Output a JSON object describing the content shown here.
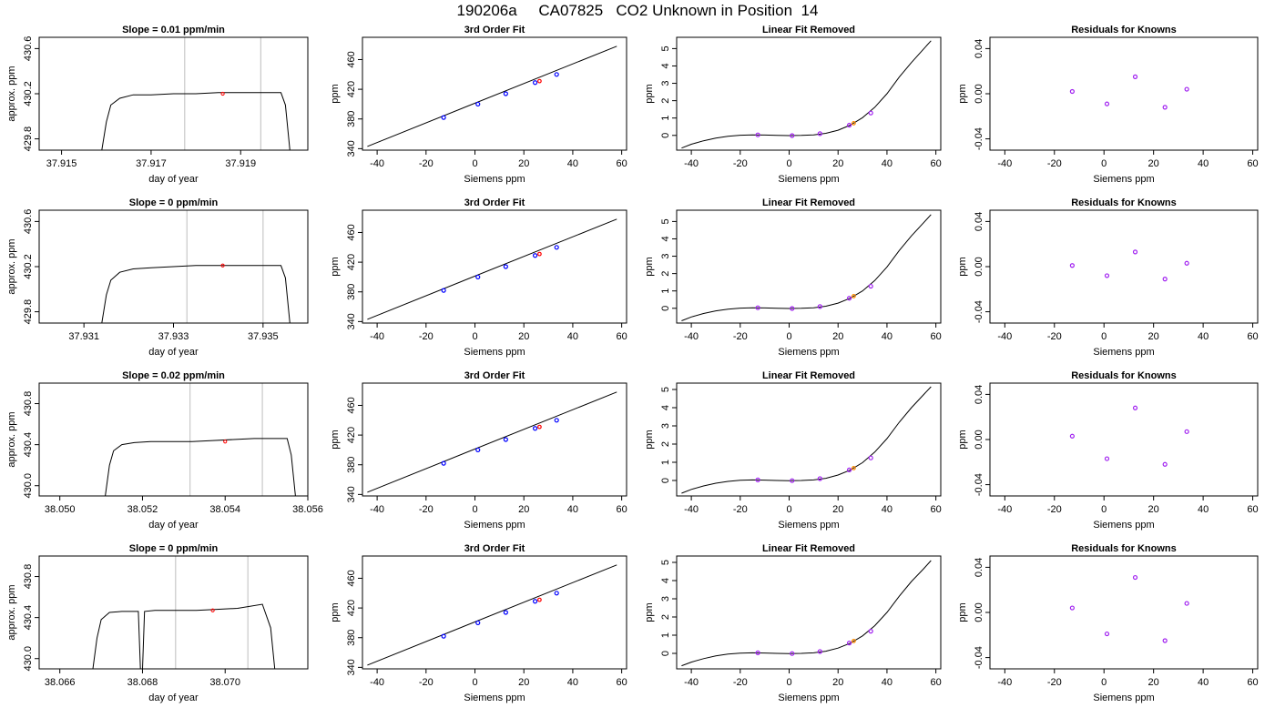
{
  "page_title": "190206a     CA07825   CO2 Unknown in Position  14",
  "colors": {
    "known_point": "#0000ff",
    "unknown_point": "#ff0000",
    "residual_point": "#a020f0",
    "removed_unknown": "#ff8c00",
    "window_line": "#c8c8c8",
    "trace": "#000000"
  },
  "chart_data": [
    {
      "type": "line",
      "row": 1,
      "panel": "trace",
      "title": "Slope =  0.01  ppm/min",
      "xlabel": "day of year",
      "ylabel": "approx. ppm",
      "xlim": [
        37.9145,
        37.9205
      ],
      "ylim": [
        429.7,
        430.7
      ],
      "xticks": [
        37.915,
        37.917,
        37.919
      ],
      "xtick_labels": [
        "37.915",
        "37.917",
        "37.919"
      ],
      "yticks": [
        429.8,
        430.2,
        430.6
      ],
      "ytick_labels": [
        "429.8",
        "430.2",
        "430.6"
      ],
      "trace_x": [
        37.9159,
        37.916,
        37.9161,
        37.9163,
        37.9166,
        37.917,
        37.9175,
        37.918,
        37.9185,
        37.919,
        37.9195,
        37.9199,
        37.92,
        37.9201
      ],
      "trace_y": [
        429.7,
        429.95,
        430.1,
        430.16,
        430.19,
        430.19,
        430.2,
        430.2,
        430.21,
        430.21,
        430.21,
        430.21,
        430.1,
        429.7
      ],
      "window_x": [
        37.91775,
        37.91945
      ],
      "mean_x": 37.9186,
      "mean_y": 430.2
    },
    {
      "type": "line",
      "row": 1,
      "panel": "fit",
      "title": "3rd Order Fit",
      "xlabel": "Siemens ppm",
      "ylabel": "ppm",
      "xlim": [
        -46,
        62
      ],
      "ylim": [
        338,
        490
      ],
      "xticks": [
        -40,
        -20,
        0,
        20,
        40,
        60
      ],
      "xtick_labels": [
        "-40",
        "-20",
        "0",
        "20",
        "40",
        "60"
      ],
      "yticks": [
        340,
        380,
        420,
        460
      ],
      "ytick_labels": [
        "340",
        "380",
        "420",
        "460"
      ],
      "line_x": [
        -44,
        58
      ],
      "line_y": [
        343,
        478
      ],
      "known_x": [
        -12.8,
        1.2,
        12.6,
        24.6,
        33.4
      ],
      "known_y": [
        382,
        400,
        414,
        429,
        440
      ],
      "unknown_x": [
        26.4
      ],
      "unknown_y": [
        431
      ]
    },
    {
      "type": "line",
      "row": 1,
      "panel": "linfit",
      "title": "Linear Fit Removed",
      "xlabel": "Siemens ppm",
      "ylabel": "ppm",
      "xlim": [
        -46,
        62
      ],
      "ylim": [
        -0.85,
        5.65
      ],
      "xticks": [
        -40,
        -20,
        0,
        20,
        40,
        60
      ],
      "xtick_labels": [
        "-40",
        "-20",
        "0",
        "20",
        "40",
        "60"
      ],
      "yticks": [
        0,
        1,
        2,
        3,
        4,
        5
      ],
      "ytick_labels": [
        "0",
        "1",
        "2",
        "3",
        "4",
        "5"
      ],
      "curve_x": [
        -44,
        -40,
        -35,
        -30,
        -25,
        -20,
        -15,
        -10,
        -5,
        0,
        5,
        10,
        15,
        20,
        25,
        30,
        35,
        40,
        45,
        50,
        55,
        58
      ],
      "curve_y": [
        -0.73,
        -0.51,
        -0.31,
        -0.16,
        -0.05,
        0.01,
        0.03,
        0.02,
        0.0,
        -0.01,
        0.0,
        0.03,
        0.12,
        0.3,
        0.59,
        1.02,
        1.62,
        2.4,
        3.36,
        4.2,
        4.98,
        5.45
      ],
      "known_x": [
        -12.8,
        1.2,
        12.6,
        24.6,
        33.4
      ],
      "known_y": [
        0.03,
        -0.01,
        0.1,
        0.59,
        1.29
      ],
      "unknown_x": [
        26.4
      ],
      "unknown_y": [
        0.7
      ]
    },
    {
      "type": "scatter",
      "row": 1,
      "panel": "resid",
      "title": "Residuals for Knowns",
      "xlabel": "Siemens ppm",
      "ylabel": "ppm",
      "xlim": [
        -46,
        62
      ],
      "ylim": [
        -0.05,
        0.05
      ],
      "xticks": [
        -40,
        -20,
        0,
        20,
        40,
        60
      ],
      "xtick_labels": [
        "-40",
        "-20",
        "0",
        "20",
        "40",
        "60"
      ],
      "yticks": [
        -0.04,
        0.0,
        0.04
      ],
      "ytick_labels": [
        "-0.04",
        "0.00",
        "0.04"
      ],
      "resid_x": [
        -12.8,
        1.2,
        12.6,
        24.6,
        33.4
      ],
      "resid_y": [
        0.002,
        -0.009,
        0.015,
        -0.012,
        0.004
      ]
    },
    {
      "type": "line",
      "row": 2,
      "panel": "trace",
      "title": "Slope =  0  ppm/min",
      "xlabel": "day of year",
      "ylabel": "approx. ppm",
      "xlim": [
        37.93,
        37.936
      ],
      "ylim": [
        429.7,
        430.7
      ],
      "xticks": [
        37.931,
        37.933,
        37.935
      ],
      "xtick_labels": [
        "37.931",
        "37.933",
        "37.935"
      ],
      "yticks": [
        429.8,
        430.2,
        430.6
      ],
      "ytick_labels": [
        "429.8",
        "430.2",
        "430.6"
      ],
      "trace_x": [
        37.9314,
        37.9315,
        37.9316,
        37.9318,
        37.9321,
        37.9325,
        37.933,
        37.9335,
        37.934,
        37.9345,
        37.935,
        37.9354,
        37.9355,
        37.9356
      ],
      "trace_y": [
        429.7,
        429.95,
        430.08,
        430.15,
        430.18,
        430.19,
        430.2,
        430.21,
        430.21,
        430.21,
        430.21,
        430.21,
        430.1,
        429.7
      ],
      "window_x": [
        37.9333,
        37.935
      ],
      "mean_x": 37.9341,
      "mean_y": 430.21
    },
    {
      "type": "line",
      "row": 2,
      "panel": "fit",
      "title": "3rd Order Fit",
      "xlabel": "Siemens ppm",
      "ylabel": "ppm",
      "xlim": [
        -46,
        62
      ],
      "ylim": [
        338,
        490
      ],
      "xticks": [
        -40,
        -20,
        0,
        20,
        40,
        60
      ],
      "xtick_labels": [
        "-40",
        "-20",
        "0",
        "20",
        "40",
        "60"
      ],
      "yticks": [
        340,
        380,
        420,
        460
      ],
      "ytick_labels": [
        "340",
        "380",
        "420",
        "460"
      ],
      "line_x": [
        -44,
        58
      ],
      "line_y": [
        343,
        478
      ],
      "known_x": [
        -12.8,
        1.2,
        12.6,
        24.6,
        33.4
      ],
      "known_y": [
        382,
        400,
        414,
        429,
        440
      ],
      "unknown_x": [
        26.4
      ],
      "unknown_y": [
        431
      ]
    },
    {
      "type": "line",
      "row": 2,
      "panel": "linfit",
      "title": "Linear Fit Removed",
      "xlabel": "Siemens ppm",
      "ylabel": "ppm",
      "xlim": [
        -46,
        62
      ],
      "ylim": [
        -0.85,
        5.65
      ],
      "xticks": [
        -40,
        -20,
        0,
        20,
        40,
        60
      ],
      "xtick_labels": [
        "-40",
        "-20",
        "0",
        "20",
        "40",
        "60"
      ],
      "yticks": [
        0,
        1,
        2,
        3,
        4,
        5
      ],
      "ytick_labels": [
        "0",
        "1",
        "2",
        "3",
        "4",
        "5"
      ],
      "curve_x": [
        -44,
        -40,
        -35,
        -30,
        -25,
        -20,
        -15,
        -10,
        -5,
        0,
        5,
        10,
        15,
        20,
        25,
        30,
        35,
        40,
        45,
        50,
        55,
        58
      ],
      "curve_y": [
        -0.72,
        -0.5,
        -0.3,
        -0.15,
        -0.05,
        0.01,
        0.03,
        0.02,
        0.0,
        -0.01,
        0.0,
        0.03,
        0.12,
        0.3,
        0.58,
        1.0,
        1.6,
        2.38,
        3.33,
        4.17,
        4.93,
        5.4
      ],
      "known_x": [
        -12.8,
        1.2,
        12.6,
        24.6,
        33.4
      ],
      "known_y": [
        0.03,
        -0.01,
        0.1,
        0.58,
        1.27
      ],
      "unknown_x": [
        26.4
      ],
      "unknown_y": [
        0.7
      ]
    },
    {
      "type": "scatter",
      "row": 2,
      "panel": "resid",
      "title": "Residuals for Knowns",
      "xlabel": "Siemens ppm",
      "ylabel": "ppm",
      "xlim": [
        -46,
        62
      ],
      "ylim": [
        -0.05,
        0.05
      ],
      "xticks": [
        -40,
        -20,
        0,
        20,
        40,
        60
      ],
      "xtick_labels": [
        "-40",
        "-20",
        "0",
        "20",
        "40",
        "60"
      ],
      "yticks": [
        -0.04,
        0.0,
        0.04
      ],
      "ytick_labels": [
        "-0.04",
        "0.00",
        "0.04"
      ],
      "resid_x": [
        -12.8,
        1.2,
        12.6,
        24.6,
        33.4
      ],
      "resid_y": [
        0.001,
        -0.008,
        0.013,
        -0.011,
        0.003
      ]
    },
    {
      "type": "line",
      "row": 3,
      "panel": "trace",
      "title": "Slope =  0.02  ppm/min",
      "xlabel": "day of year",
      "ylabel": "approx. ppm",
      "xlim": [
        38.0495,
        38.056
      ],
      "ylim": [
        429.9,
        431.0
      ],
      "xticks": [
        38.05,
        38.052,
        38.054,
        38.056
      ],
      "xtick_labels": [
        "38.050",
        "38.052",
        "38.054",
        "38.056"
      ],
      "yticks": [
        430.0,
        430.4,
        430.8
      ],
      "ytick_labels": [
        "430.0",
        "430.4",
        "430.8"
      ],
      "trace_x": [
        38.0511,
        38.0512,
        38.0513,
        38.0515,
        38.0518,
        38.0522,
        38.0527,
        38.0532,
        38.0537,
        38.0542,
        38.0547,
        38.0552,
        38.0555,
        38.0556,
        38.0557
      ],
      "trace_y": [
        429.9,
        430.2,
        430.34,
        430.4,
        430.42,
        430.43,
        430.43,
        430.43,
        430.44,
        430.45,
        430.46,
        430.46,
        430.46,
        430.3,
        429.9
      ],
      "window_x": [
        38.05315,
        38.0549
      ],
      "mean_x": 38.054,
      "mean_y": 430.43
    },
    {
      "type": "line",
      "row": 3,
      "panel": "fit",
      "title": "3rd Order Fit",
      "xlabel": "Siemens ppm",
      "ylabel": "ppm",
      "xlim": [
        -46,
        62
      ],
      "ylim": [
        338,
        490
      ],
      "xticks": [
        -40,
        -20,
        0,
        20,
        40,
        60
      ],
      "xtick_labels": [
        "-40",
        "-20",
        "0",
        "20",
        "40",
        "60"
      ],
      "yticks": [
        340,
        380,
        420,
        460
      ],
      "ytick_labels": [
        "340",
        "380",
        "420",
        "460"
      ],
      "line_x": [
        -44,
        58
      ],
      "line_y": [
        343,
        478
      ],
      "known_x": [
        -12.8,
        1.2,
        12.6,
        24.6,
        33.4
      ],
      "known_y": [
        382,
        400,
        414,
        429,
        440
      ],
      "unknown_x": [
        26.4
      ],
      "unknown_y": [
        431
      ]
    },
    {
      "type": "line",
      "row": 3,
      "panel": "linfit",
      "title": "Linear Fit Removed",
      "xlabel": "Siemens ppm",
      "ylabel": "ppm",
      "xlim": [
        -46,
        62
      ],
      "ylim": [
        -0.85,
        5.35
      ],
      "xticks": [
        -40,
        -20,
        0,
        20,
        40,
        60
      ],
      "xtick_labels": [
        "-40",
        "-20",
        "0",
        "20",
        "40",
        "60"
      ],
      "yticks": [
        0,
        1,
        2,
        3,
        4,
        5
      ],
      "ytick_labels": [
        "0",
        "1",
        "2",
        "3",
        "4",
        "5"
      ],
      "curve_x": [
        -44,
        -40,
        -35,
        -30,
        -25,
        -20,
        -15,
        -10,
        -5,
        0,
        5,
        10,
        15,
        20,
        25,
        30,
        35,
        40,
        45,
        50,
        55,
        58
      ],
      "curve_y": [
        -0.7,
        -0.49,
        -0.3,
        -0.15,
        -0.05,
        0.01,
        0.03,
        0.02,
        0.0,
        -0.01,
        0.0,
        0.03,
        0.12,
        0.3,
        0.57,
        0.98,
        1.56,
        2.3,
        3.2,
        4.0,
        4.72,
        5.15
      ],
      "known_x": [
        -12.8,
        1.2,
        12.6,
        24.6,
        33.4
      ],
      "known_y": [
        0.03,
        -0.01,
        0.1,
        0.58,
        1.24
      ],
      "unknown_x": [
        26.4
      ],
      "unknown_y": [
        0.68
      ]
    },
    {
      "type": "scatter",
      "row": 3,
      "panel": "resid",
      "title": "Residuals for Knowns",
      "xlabel": "Siemens ppm",
      "ylabel": "ppm",
      "xlim": [
        -46,
        62
      ],
      "ylim": [
        -0.05,
        0.05
      ],
      "xticks": [
        -40,
        -20,
        0,
        20,
        40,
        60
      ],
      "xtick_labels": [
        "-40",
        "-20",
        "0",
        "20",
        "40",
        "60"
      ],
      "yticks": [
        -0.04,
        0.0,
        0.04
      ],
      "ytick_labels": [
        "-0.04",
        "0.00",
        "0.04"
      ],
      "resid_x": [
        -12.8,
        1.2,
        12.6,
        24.6,
        33.4
      ],
      "resid_y": [
        0.003,
        -0.017,
        0.028,
        -0.022,
        0.007
      ]
    },
    {
      "type": "line",
      "row": 4,
      "panel": "trace",
      "title": "Slope =  0  ppm/min",
      "xlabel": "day of year",
      "ylabel": "approx. ppm",
      "xlim": [
        38.0655,
        38.072
      ],
      "ylim": [
        429.9,
        431.0
      ],
      "xticks": [
        38.066,
        38.068,
        38.07
      ],
      "xtick_labels": [
        "38.066",
        "38.068",
        "38.070"
      ],
      "yticks": [
        430.0,
        430.4,
        430.8
      ],
      "ytick_labels": [
        "430.0",
        "430.4",
        "430.8"
      ],
      "trace_x": [
        38.0668,
        38.0669,
        38.067,
        38.0672,
        38.0675,
        38.0679,
        38.06795,
        38.068,
        38.06805,
        38.0683,
        38.0688,
        38.0693,
        38.0698,
        38.0703,
        38.0709,
        38.0711,
        38.0712
      ],
      "trace_y": [
        429.9,
        430.2,
        430.38,
        430.45,
        430.46,
        430.46,
        429.9,
        429.9,
        430.46,
        430.47,
        430.47,
        430.47,
        430.48,
        430.49,
        430.53,
        430.3,
        429.9
      ],
      "window_x": [
        38.0688,
        38.07055
      ],
      "mean_x": 38.0697,
      "mean_y": 430.47
    },
    {
      "type": "line",
      "row": 4,
      "panel": "fit",
      "title": "3rd Order Fit",
      "xlabel": "Siemens ppm",
      "ylabel": "ppm",
      "xlim": [
        -46,
        62
      ],
      "ylim": [
        338,
        490
      ],
      "xticks": [
        -40,
        -20,
        0,
        20,
        40,
        60
      ],
      "xtick_labels": [
        "-40",
        "-20",
        "0",
        "20",
        "40",
        "60"
      ],
      "yticks": [
        340,
        380,
        420,
        460
      ],
      "ytick_labels": [
        "340",
        "380",
        "420",
        "460"
      ],
      "line_x": [
        -44,
        58
      ],
      "line_y": [
        343,
        478
      ],
      "known_x": [
        -12.8,
        1.2,
        12.6,
        24.6,
        33.4
      ],
      "known_y": [
        382,
        400,
        414,
        429,
        440
      ],
      "unknown_x": [
        26.4
      ],
      "unknown_y": [
        431
      ]
    },
    {
      "type": "line",
      "row": 4,
      "panel": "linfit",
      "title": "Linear Fit Removed",
      "xlabel": "Siemens ppm",
      "ylabel": "ppm",
      "xlim": [
        -46,
        62
      ],
      "ylim": [
        -0.85,
        5.35
      ],
      "xticks": [
        -40,
        -20,
        0,
        20,
        40,
        60
      ],
      "xtick_labels": [
        "-40",
        "-20",
        "0",
        "20",
        "40",
        "60"
      ],
      "yticks": [
        0,
        1,
        2,
        3,
        4,
        5
      ],
      "ytick_labels": [
        "0",
        "1",
        "2",
        "3",
        "4",
        "5"
      ],
      "curve_x": [
        -44,
        -40,
        -35,
        -30,
        -25,
        -20,
        -15,
        -10,
        -5,
        0,
        5,
        10,
        15,
        20,
        25,
        30,
        35,
        40,
        45,
        50,
        55,
        58
      ],
      "curve_y": [
        -0.68,
        -0.48,
        -0.29,
        -0.14,
        -0.04,
        0.01,
        0.03,
        0.02,
        0.0,
        -0.01,
        0.0,
        0.03,
        0.12,
        0.29,
        0.56,
        0.96,
        1.52,
        2.25,
        3.14,
        3.95,
        4.65,
        5.1
      ],
      "known_x": [
        -12.8,
        1.2,
        12.6,
        24.6,
        33.4
      ],
      "known_y": [
        0.03,
        -0.01,
        0.1,
        0.57,
        1.22
      ],
      "unknown_x": [
        26.4
      ],
      "unknown_y": [
        0.68
      ]
    },
    {
      "type": "scatter",
      "row": 4,
      "panel": "resid",
      "title": "Residuals for Knowns",
      "xlabel": "Siemens ppm",
      "ylabel": "ppm",
      "xlim": [
        -46,
        62
      ],
      "ylim": [
        -0.05,
        0.05
      ],
      "xticks": [
        -40,
        -20,
        0,
        20,
        40,
        60
      ],
      "xtick_labels": [
        "-40",
        "-20",
        "0",
        "20",
        "40",
        "60"
      ],
      "yticks": [
        -0.04,
        0.0,
        0.04
      ],
      "ytick_labels": [
        "-0.04",
        "0.00",
        "0.04"
      ],
      "resid_x": [
        -12.8,
        1.2,
        12.6,
        24.6,
        33.4
      ],
      "resid_y": [
        0.004,
        -0.019,
        0.031,
        -0.025,
        0.008
      ]
    }
  ]
}
